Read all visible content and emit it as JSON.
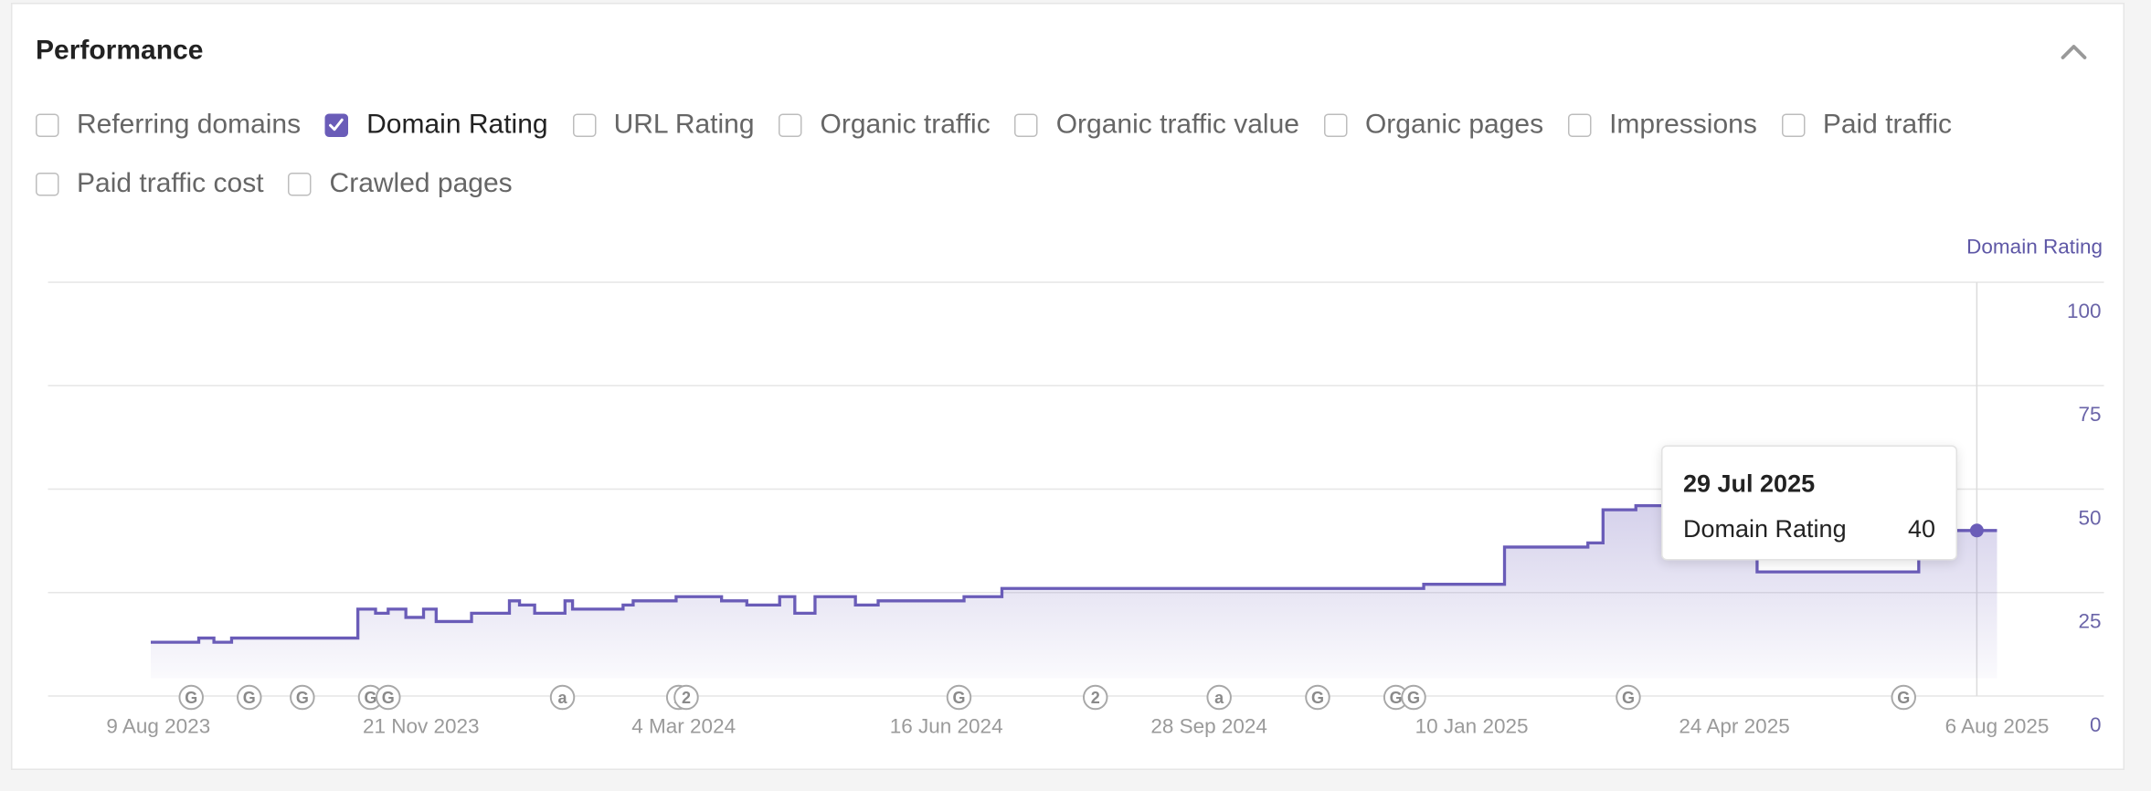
{
  "panel": {
    "title": "Performance",
    "options": [
      {
        "label": "Referring domains",
        "checked": false
      },
      {
        "label": "Domain Rating",
        "checked": true
      },
      {
        "label": "URL Rating",
        "checked": false
      },
      {
        "label": "Organic traffic",
        "checked": false
      },
      {
        "label": "Organic traffic value",
        "checked": false
      },
      {
        "label": "Organic pages",
        "checked": false
      },
      {
        "label": "Impressions",
        "checked": false
      },
      {
        "label": "Paid traffic",
        "checked": false
      },
      {
        "label": "Paid traffic cost",
        "checked": false
      },
      {
        "label": "Crawled pages",
        "checked": false
      }
    ]
  },
  "chart_data": {
    "type": "line",
    "step": true,
    "ylabel": "Domain Rating",
    "x": [
      "2023-08-06",
      "2023-08-25",
      "2023-08-31",
      "2023-09-07",
      "2023-10-27",
      "2023-11-03",
      "2023-11-08",
      "2023-11-15",
      "2023-11-22",
      "2023-11-27",
      "2023-12-11",
      "2023-12-26",
      "2023-12-30",
      "2024-01-05",
      "2024-01-17",
      "2024-01-20",
      "2024-02-09",
      "2024-02-13",
      "2024-03-01",
      "2024-03-19",
      "2024-03-29",
      "2024-04-11",
      "2024-04-17",
      "2024-04-25",
      "2024-05-11",
      "2024-05-20",
      "2024-06-23",
      "2024-07-08",
      "2024-12-22",
      "2025-01-23",
      "2025-02-25",
      "2025-03-03",
      "2025-03-16",
      "2025-05-03",
      "2025-07-06",
      "2025-08-06"
    ],
    "series": [
      {
        "name": "Domain Rating",
        "color": "#6a5cb8",
        "values": [
          13,
          14,
          13,
          14,
          21,
          20,
          21,
          19,
          21,
          18,
          20,
          23,
          22,
          20,
          23,
          21,
          22,
          23,
          24,
          23,
          22,
          24,
          20,
          24,
          22,
          23,
          24,
          26,
          27,
          36,
          37,
          45,
          46,
          30,
          40,
          40
        ]
      }
    ],
    "xlim": [
      "2023-08-06",
      "2025-08-06"
    ],
    "ylim": [
      0,
      100
    ],
    "yticks": [
      0,
      25,
      50,
      75,
      100
    ],
    "grid": true,
    "xticks": [
      {
        "value": "2023-08-09",
        "label": "9 Aug 2023"
      },
      {
        "value": "2023-11-21",
        "label": "21 Nov 2023"
      },
      {
        "value": "2024-03-04",
        "label": "4 Mar 2024"
      },
      {
        "value": "2024-06-16",
        "label": "16 Jun 2024"
      },
      {
        "value": "2024-09-28",
        "label": "28 Sep 2024"
      },
      {
        "value": "2025-01-10",
        "label": "10 Jan 2025"
      },
      {
        "value": "2025-04-24",
        "label": "24 Apr 2025"
      },
      {
        "value": "2025-08-06",
        "label": "6 Aug 2025"
      }
    ],
    "annotations": [
      {
        "x": "2023-08-22",
        "label": "G"
      },
      {
        "x": "2023-09-14",
        "label": "G"
      },
      {
        "x": "2023-10-05",
        "label": "G"
      },
      {
        "x": "2023-11-01",
        "label": "G"
      },
      {
        "x": "2023-11-08",
        "label": "G"
      },
      {
        "x": "2024-01-16",
        "label": "a"
      },
      {
        "x": "2024-03-02",
        "label": "2"
      },
      {
        "x": "2024-03-05",
        "label": "2"
      },
      {
        "x": "2024-06-21",
        "label": "G"
      },
      {
        "x": "2024-08-14",
        "label": "2"
      },
      {
        "x": "2024-10-02",
        "label": "a"
      },
      {
        "x": "2024-11-10",
        "label": "G"
      },
      {
        "x": "2024-12-11",
        "label": "G"
      },
      {
        "x": "2024-12-18",
        "label": "G"
      },
      {
        "x": "2025-03-13",
        "label": "G"
      },
      {
        "x": "2025-06-30",
        "label": "G"
      }
    ],
    "tooltip": {
      "x": "2025-07-29",
      "label": "29 Jul 2025",
      "value": 40
    }
  }
}
